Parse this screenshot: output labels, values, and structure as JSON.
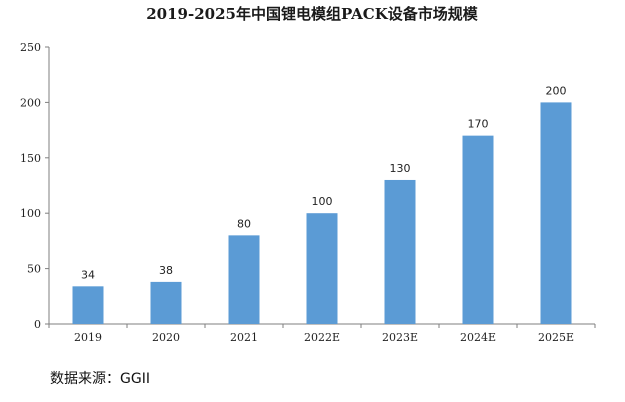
{
  "chart_data": {
    "type": "bar",
    "title": "2019-2025年中国锂电模组PACK设备市场规模",
    "categories": [
      "2019",
      "2020",
      "2021",
      "2022E",
      "2023E",
      "2024E",
      "2025E"
    ],
    "values": [
      34,
      38,
      80,
      100,
      130,
      170,
      200
    ],
    "xlabel": "",
    "ylabel": "",
    "ylim": [
      0,
      250
    ],
    "yticks": [
      0,
      50,
      100,
      150,
      200,
      250
    ],
    "grid": false,
    "legend": "none",
    "bar_color": "#5b9bd5"
  },
  "source": {
    "label": "数据来源：GGII"
  }
}
